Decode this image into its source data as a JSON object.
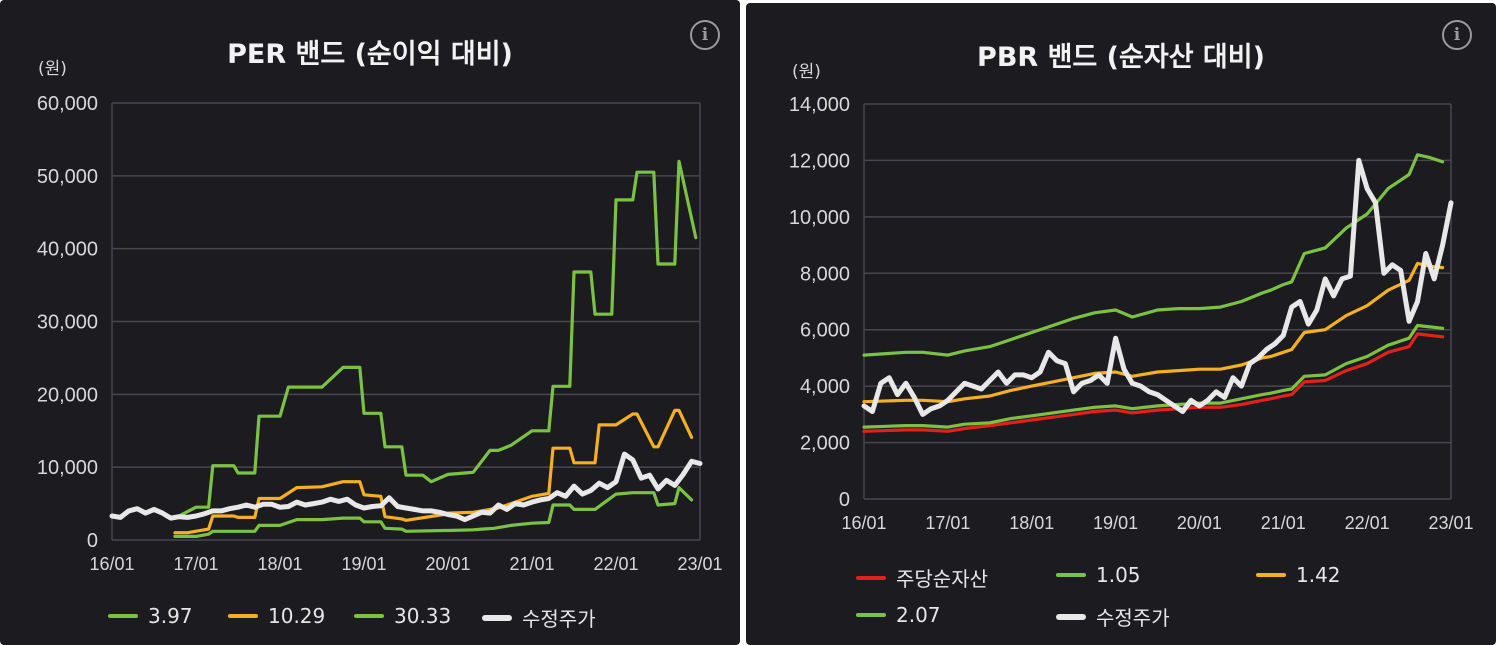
{
  "chart_data": [
    {
      "type": "line",
      "title": "PER 밴드 (순이익 대비)",
      "ylabel": "(원)",
      "ylim": [
        0,
        60000
      ],
      "yticks": [
        0,
        10000,
        20000,
        30000,
        40000,
        50000,
        60000
      ],
      "ytick_labels": [
        "0",
        "10,000",
        "20,000",
        "30,000",
        "40,000",
        "50,000",
        "60,000"
      ],
      "xlim": [
        0,
        7
      ],
      "xticks": [
        0,
        1,
        2,
        3,
        4,
        5,
        6,
        7
      ],
      "xtick_labels": [
        "16/01",
        "17/01",
        "18/01",
        "19/01",
        "20/01",
        "21/01",
        "22/01",
        "23/01"
      ],
      "legend": "bottom",
      "grid": true,
      "series": [
        {
          "name": "3.97",
          "color": "#7bc243",
          "x": [
            0.75,
            1.0,
            1.15,
            1.2,
            1.45,
            1.5,
            1.7,
            1.75,
            2.0,
            2.2,
            2.5,
            2.75,
            2.95,
            3.0,
            3.2,
            3.25,
            3.45,
            3.5,
            3.95,
            4.0,
            4.3,
            4.4,
            4.55,
            4.6,
            4.75,
            5.0,
            5.2,
            5.25,
            5.45,
            5.5,
            5.75,
            6.0,
            6.2,
            6.25,
            6.45,
            6.5,
            6.7,
            6.75,
            6.9
          ],
          "y": [
            500,
            500,
            800,
            1200,
            1200,
            1200,
            1200,
            2000,
            2000,
            2800,
            2800,
            3000,
            3000,
            2500,
            2500,
            1600,
            1500,
            1200,
            1300,
            1300,
            1400,
            1500,
            1600,
            1700,
            2000,
            2300,
            2400,
            4800,
            4800,
            4200,
            4200,
            6300,
            6500,
            6500,
            6500,
            4800,
            5000,
            7200,
            5500
          ]
        },
        {
          "name": "10.29",
          "color": "#f4b021",
          "x": [
            0.75,
            0.9,
            1.15,
            1.2,
            1.45,
            1.5,
            1.7,
            1.75,
            2.0,
            2.2,
            2.5,
            2.75,
            2.95,
            3.0,
            3.2,
            3.25,
            3.45,
            3.5,
            3.95,
            4.0,
            4.3,
            4.4,
            4.55,
            4.6,
            4.75,
            5.0,
            5.2,
            5.25,
            5.45,
            5.5,
            5.75,
            5.8,
            6.0,
            6.2,
            6.25,
            6.45,
            6.5,
            6.7,
            6.75,
            6.9
          ],
          "y": [
            1000,
            1000,
            1500,
            3300,
            3300,
            3100,
            3100,
            5700,
            5700,
            7200,
            7300,
            8000,
            8000,
            6200,
            6000,
            3200,
            2900,
            2700,
            3500,
            3700,
            3800,
            4000,
            4300,
            4400,
            5000,
            6000,
            6400,
            12600,
            12600,
            10600,
            10600,
            15800,
            15800,
            17300,
            17300,
            12800,
            12800,
            17800,
            17800,
            14100
          ]
        },
        {
          "name": "30.33",
          "color": "#7bc243",
          "x": [
            0.75,
            1.0,
            1.15,
            1.2,
            1.45,
            1.5,
            1.7,
            1.75,
            2.0,
            2.1,
            2.5,
            2.75,
            2.95,
            3.0,
            3.2,
            3.25,
            3.45,
            3.5,
            3.7,
            3.8,
            4.0,
            4.2,
            4.3,
            4.5,
            4.6,
            4.75,
            5.0,
            5.2,
            5.25,
            5.45,
            5.5,
            5.7,
            5.75,
            5.95,
            6.0,
            6.2,
            6.25,
            6.45,
            6.5,
            6.7,
            6.75,
            6.95
          ],
          "y": [
            3000,
            4500,
            4500,
            10200,
            10200,
            9200,
            9200,
            17000,
            17000,
            21000,
            21000,
            23700,
            23700,
            17400,
            17400,
            12800,
            12800,
            8900,
            8900,
            8000,
            9000,
            9200,
            9300,
            12300,
            12300,
            13000,
            15000,
            15000,
            21100,
            21100,
            36800,
            36800,
            31000,
            31000,
            46700,
            46700,
            50500,
            50500,
            37900,
            37900,
            52000,
            41500
          ]
        },
        {
          "name": "수정주가",
          "color": "#e8e8e8",
          "thick": true,
          "x": [
            0.0,
            0.1,
            0.2,
            0.3,
            0.4,
            0.5,
            0.6,
            0.7,
            0.8,
            0.9,
            1.0,
            1.1,
            1.2,
            1.3,
            1.4,
            1.5,
            1.6,
            1.7,
            1.8,
            1.9,
            2.0,
            2.1,
            2.2,
            2.3,
            2.4,
            2.5,
            2.6,
            2.7,
            2.8,
            2.9,
            3.0,
            3.1,
            3.2,
            3.3,
            3.4,
            3.5,
            3.6,
            3.7,
            3.8,
            3.9,
            4.0,
            4.1,
            4.2,
            4.3,
            4.4,
            4.5,
            4.6,
            4.7,
            4.8,
            4.9,
            5.0,
            5.1,
            5.2,
            5.3,
            5.4,
            5.5,
            5.6,
            5.7,
            5.8,
            5.9,
            6.0,
            6.1,
            6.2,
            6.3,
            6.4,
            6.5,
            6.6,
            6.7,
            6.8,
            6.9,
            7.0
          ],
          "y": [
            3300,
            3100,
            4000,
            4300,
            3700,
            4200,
            3700,
            3000,
            3200,
            3100,
            3300,
            3600,
            4000,
            4000,
            4300,
            4500,
            4800,
            4500,
            4900,
            4900,
            4500,
            4600,
            5200,
            4800,
            5000,
            5200,
            5600,
            5300,
            5600,
            4800,
            4400,
            4600,
            4700,
            5800,
            4600,
            4400,
            4200,
            4000,
            4000,
            3800,
            3500,
            3300,
            2800,
            3300,
            3800,
            3700,
            4800,
            4200,
            5000,
            4800,
            5200,
            5500,
            5700,
            6500,
            6000,
            7400,
            6300,
            6800,
            7800,
            7200,
            8000,
            11800,
            11000,
            8500,
            8900,
            7000,
            8200,
            7500,
            9000,
            10800,
            10500
          ]
        }
      ]
    },
    {
      "type": "line",
      "title": "PBR 밴드 (순자산 대비)",
      "ylabel": "(원)",
      "ylim": [
        0,
        14000
      ],
      "yticks": [
        0,
        2000,
        4000,
        6000,
        8000,
        10000,
        12000,
        14000
      ],
      "ytick_labels": [
        "0",
        "2,000",
        "4,000",
        "6,000",
        "8,000",
        "10,000",
        "12,000",
        "14,000"
      ],
      "xlim": [
        0,
        7
      ],
      "xticks": [
        0,
        1,
        2,
        3,
        4,
        5,
        6,
        7
      ],
      "xtick_labels": [
        "16/01",
        "17/01",
        "18/01",
        "19/01",
        "20/01",
        "21/01",
        "22/01",
        "23/01"
      ],
      "legend": "bottom",
      "grid": true,
      "series": [
        {
          "name": "주당순자산",
          "color": "#e3201b",
          "x": [
            0.0,
            0.5,
            0.7,
            1.0,
            1.2,
            1.5,
            1.75,
            2.0,
            2.25,
            2.5,
            2.75,
            3.0,
            3.2,
            3.5,
            3.75,
            4.0,
            4.25,
            4.5,
            4.75,
            4.85,
            5.0,
            5.1,
            5.25,
            5.5,
            5.75,
            6.0,
            6.25,
            6.5,
            6.6,
            6.75,
            6.9
          ],
          "y": [
            2400,
            2450,
            2450,
            2400,
            2500,
            2600,
            2700,
            2800,
            2900,
            3000,
            3100,
            3150,
            3050,
            3150,
            3200,
            3250,
            3250,
            3350,
            3500,
            3550,
            3650,
            3700,
            4150,
            4200,
            4550,
            4800,
            5200,
            5400,
            5850,
            5800,
            5750
          ]
        },
        {
          "name": "1.05",
          "color": "#7bc243",
          "x": [
            0.0,
            0.5,
            0.7,
            1.0,
            1.2,
            1.5,
            1.75,
            2.0,
            2.25,
            2.5,
            2.75,
            3.0,
            3.2,
            3.5,
            3.75,
            4.0,
            4.25,
            4.5,
            4.75,
            4.85,
            5.0,
            5.1,
            5.25,
            5.5,
            5.75,
            6.0,
            6.25,
            6.5,
            6.6,
            6.75,
            6.9
          ],
          "y": [
            2550,
            2600,
            2600,
            2550,
            2650,
            2700,
            2850,
            2950,
            3050,
            3150,
            3250,
            3300,
            3200,
            3300,
            3350,
            3400,
            3400,
            3550,
            3700,
            3750,
            3850,
            3900,
            4350,
            4400,
            4800,
            5050,
            5450,
            5700,
            6150,
            6100,
            6050
          ]
        },
        {
          "name": "1.42",
          "color": "#f4b021",
          "x": [
            0.0,
            0.5,
            0.7,
            1.0,
            1.2,
            1.5,
            1.75,
            2.0,
            2.25,
            2.5,
            2.75,
            3.0,
            3.2,
            3.5,
            3.75,
            4.0,
            4.25,
            4.5,
            4.75,
            4.85,
            5.0,
            5.1,
            5.25,
            5.5,
            5.75,
            6.0,
            6.25,
            6.5,
            6.6,
            6.75,
            6.9
          ],
          "y": [
            3450,
            3500,
            3500,
            3450,
            3550,
            3650,
            3850,
            4000,
            4150,
            4300,
            4450,
            4500,
            4350,
            4500,
            4550,
            4600,
            4600,
            4750,
            5000,
            5050,
            5200,
            5300,
            5900,
            6000,
            6500,
            6850,
            7400,
            7750,
            8350,
            8250,
            8200
          ]
        },
        {
          "name": "2.07",
          "color": "#7bc243",
          "x": [
            0.0,
            0.5,
            0.7,
            1.0,
            1.2,
            1.5,
            1.75,
            2.0,
            2.25,
            2.5,
            2.75,
            3.0,
            3.2,
            3.5,
            3.75,
            4.0,
            4.25,
            4.5,
            4.75,
            4.85,
            5.0,
            5.1,
            5.25,
            5.5,
            5.75,
            6.0,
            6.25,
            6.5,
            6.6,
            6.75,
            6.9
          ],
          "y": [
            5100,
            5200,
            5200,
            5100,
            5250,
            5400,
            5650,
            5900,
            6150,
            6400,
            6600,
            6700,
            6450,
            6700,
            6750,
            6750,
            6800,
            7000,
            7300,
            7400,
            7600,
            7700,
            8700,
            8900,
            9600,
            10100,
            11000,
            11500,
            12200,
            12100,
            11950
          ]
        },
        {
          "name": "수정주가",
          "color": "#e8e8e8",
          "thick": true,
          "x": [
            0.0,
            0.1,
            0.2,
            0.3,
            0.4,
            0.5,
            0.6,
            0.7,
            0.8,
            0.9,
            1.0,
            1.1,
            1.2,
            1.3,
            1.4,
            1.5,
            1.6,
            1.7,
            1.8,
            1.9,
            2.0,
            2.1,
            2.2,
            2.3,
            2.4,
            2.5,
            2.6,
            2.7,
            2.8,
            2.9,
            3.0,
            3.1,
            3.2,
            3.3,
            3.4,
            3.5,
            3.6,
            3.7,
            3.8,
            3.9,
            4.0,
            4.1,
            4.2,
            4.3,
            4.4,
            4.5,
            4.6,
            4.7,
            4.8,
            4.9,
            5.0,
            5.1,
            5.2,
            5.3,
            5.4,
            5.5,
            5.6,
            5.7,
            5.8,
            5.9,
            6.0,
            6.1,
            6.2,
            6.3,
            6.4,
            6.5,
            6.6,
            6.7,
            6.8,
            6.9,
            7.0
          ],
          "y": [
            3300,
            3100,
            4100,
            4300,
            3700,
            4100,
            3600,
            3000,
            3200,
            3300,
            3500,
            3800,
            4100,
            4000,
            3900,
            4200,
            4500,
            4100,
            4400,
            4400,
            4300,
            4500,
            5200,
            4900,
            4800,
            3800,
            4100,
            4200,
            4400,
            4100,
            5700,
            4600,
            4100,
            4000,
            3800,
            3700,
            3500,
            3300,
            3100,
            3500,
            3300,
            3500,
            3800,
            3600,
            4300,
            4000,
            4800,
            5000,
            5300,
            5500,
            5800,
            6800,
            7000,
            6200,
            6700,
            7800,
            7200,
            7800,
            7900,
            12000,
            11000,
            10500,
            8000,
            8300,
            8100,
            6300,
            7000,
            8700,
            7800,
            9000,
            10500
          ]
        }
      ]
    }
  ],
  "panels": [
    {
      "legend": [
        "3.97",
        "10.29",
        "30.33",
        "수정주가"
      ],
      "legend_colors": [
        "#7bc243",
        "#f4b021",
        "#7bc243",
        "#e8e8e8"
      ],
      "icon": "info-icon"
    },
    {
      "legend": [
        "주당순자산",
        "1.05",
        "1.42",
        "2.07",
        "수정주가"
      ],
      "legend_colors": [
        "#e3201b",
        "#7bc243",
        "#f4b021",
        "#7bc243",
        "#e8e8e8"
      ],
      "icon": "info-icon"
    }
  ],
  "info_icon_glyph": "i"
}
